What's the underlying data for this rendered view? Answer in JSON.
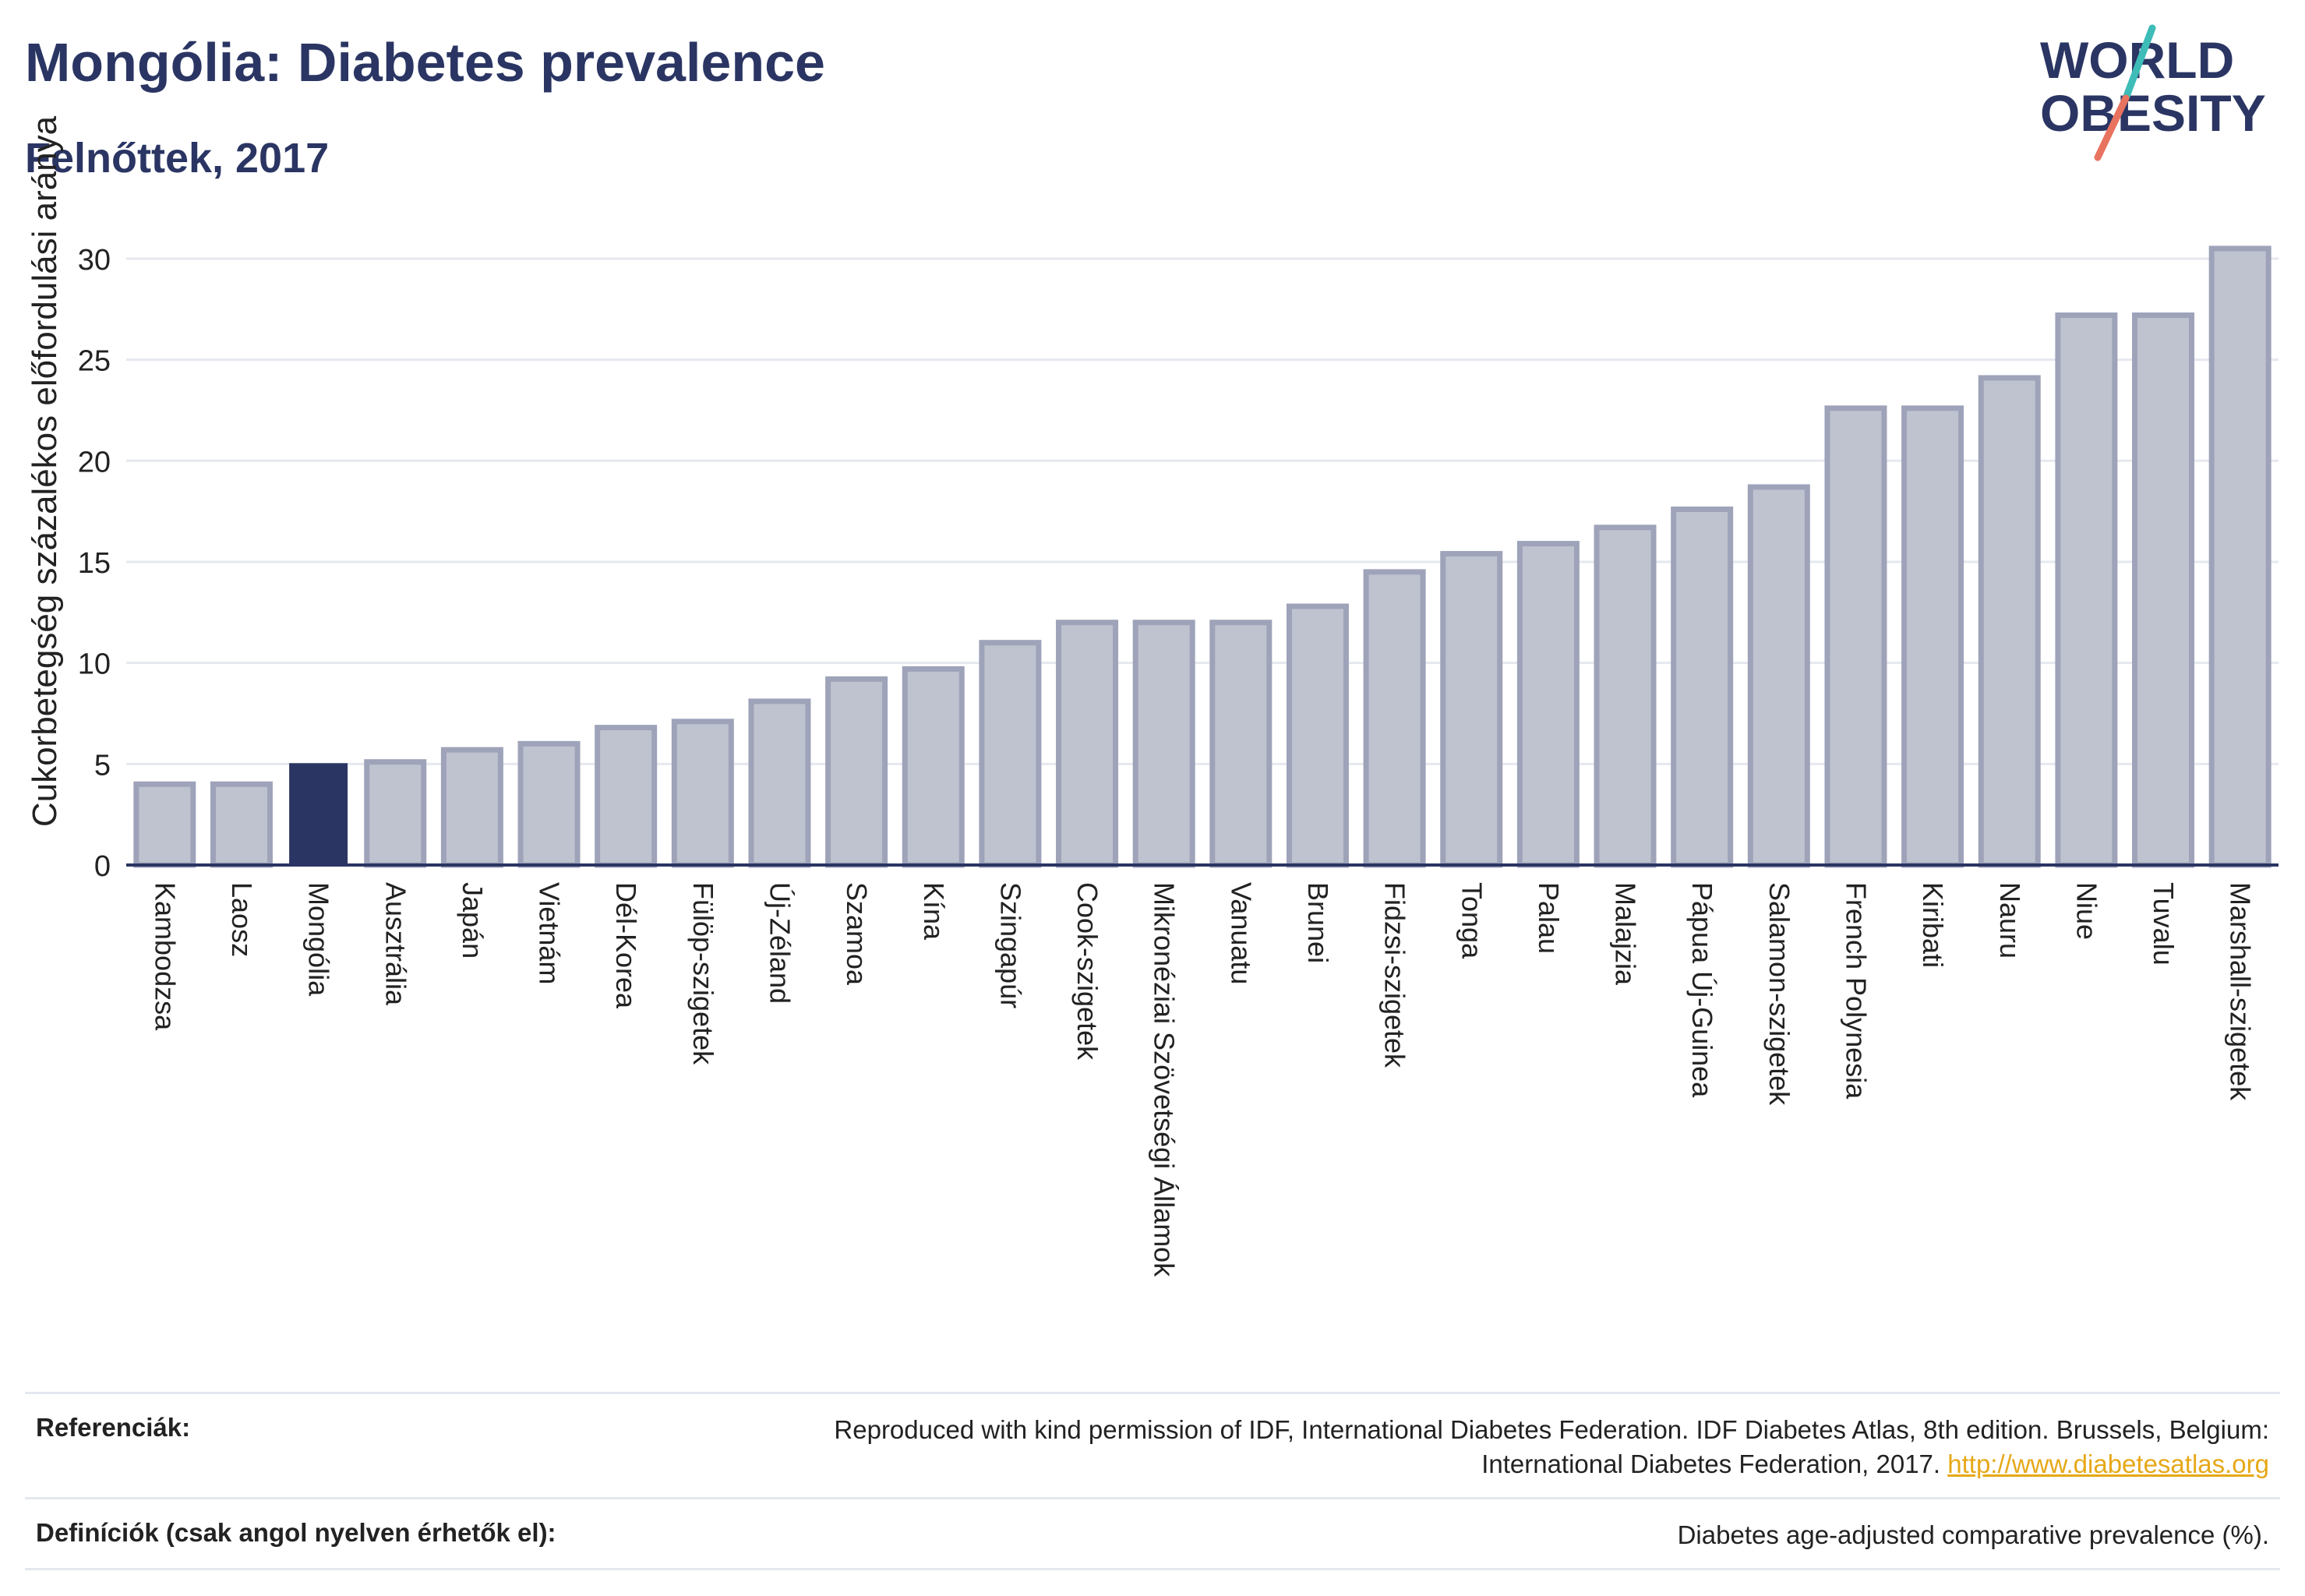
{
  "header": {
    "title": "Mongólia: Diabetes prevalence",
    "subtitle": "Felnőttek, 2017"
  },
  "logo": {
    "line1": "WORLD",
    "line2": "OBESITY",
    "colors": {
      "text": "#2a3563",
      "slash_teal": "#3dbcb8",
      "slash_coral": "#e8735f"
    }
  },
  "colors": {
    "bar_fill": "#bfc3d0",
    "bar_stroke": "#9ea3b9",
    "highlight": "#2a3563",
    "grid": "#e6e8f0",
    "axis": "#2a3563",
    "link": "#e6a817"
  },
  "chart_data": {
    "type": "bar",
    "ylabel": "Cukorbetegség százalékos előfordulási aránya",
    "ylim": [
      0,
      32
    ],
    "yticks": [
      0,
      5,
      10,
      15,
      20,
      25,
      30
    ],
    "grid": true,
    "highlight_category": "Mongólia",
    "categories": [
      "Kambodzsa",
      "Laosz",
      "Mongólia",
      "Ausztrália",
      "Japán",
      "Vietnám",
      "Dél-Korea",
      "Fülöp-szigetek",
      "Új-Zéland",
      "Szamoa",
      "Kína",
      "Szingapúr",
      "Cook-szigetek",
      "Mikronéziai Szövetségi Államok",
      "Vanuatu",
      "Brunei",
      "Fidzsi-szigetek",
      "Tonga",
      "Palau",
      "Malajzia",
      "Pápua Új-Guinea",
      "Salamon-szigetek",
      "French Polynesia",
      "Kiribati",
      "Nauru",
      "Niue",
      "Tuvalu",
      "Marshall-szigetek"
    ],
    "values": [
      4.0,
      4.0,
      5.0,
      5.1,
      5.7,
      6.0,
      6.8,
      7.1,
      8.1,
      9.2,
      9.7,
      11.0,
      12.0,
      12.0,
      12.0,
      12.8,
      14.5,
      15.4,
      15.9,
      16.7,
      17.6,
      18.7,
      22.6,
      22.6,
      24.1,
      27.2,
      27.2,
      30.5
    ]
  },
  "footer": {
    "references_label": "Referenciák:",
    "references_text": "Reproduced with kind permission of IDF, International Diabetes Federation. IDF Diabetes Atlas, 8th edition. Brussels, Belgium: International Diabetes Federation, 2017.",
    "references_link": "http://www.diabetesatlas.org",
    "definitions_label": "Definíciók (csak angol nyelven érhetők el):",
    "definitions_text": "Diabetes age-adjusted comparative prevalence (%)."
  }
}
